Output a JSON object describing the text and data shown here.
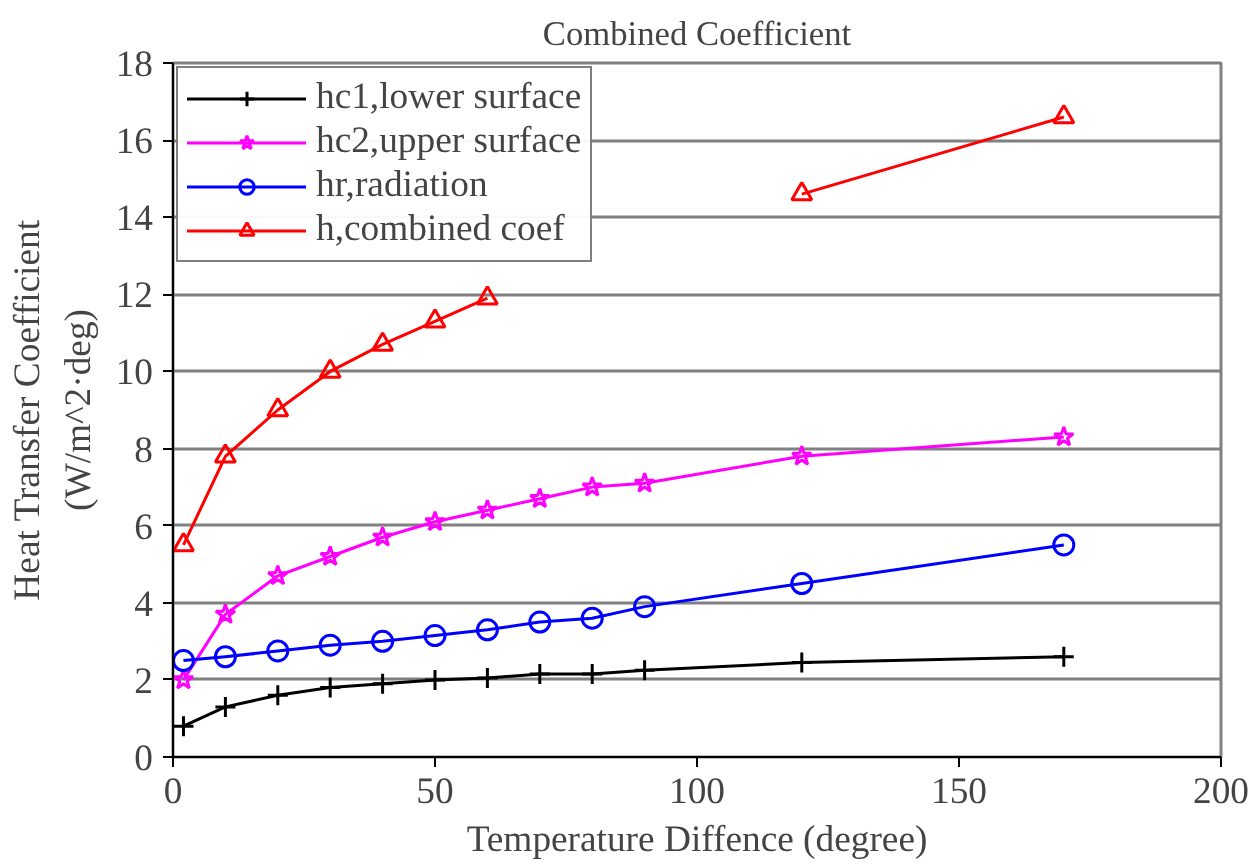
{
  "chart_data": {
    "type": "line",
    "title": "Combined Coefficient",
    "xlabel": "Temperature Diffence (degree)",
    "ylabel": "Heat Transfer Coefficient\n(W/m^2·deg)",
    "x": [
      2,
      10,
      20,
      30,
      40,
      50,
      60,
      70,
      80,
      90,
      120,
      170
    ],
    "series": [
      {
        "name": "hc1,lower surface",
        "color": "#000000",
        "marker": "cross",
        "values": [
          0.8,
          1.3,
          1.6,
          1.8,
          1.9,
          2.0,
          2.05,
          2.15,
          2.15,
          2.25,
          2.45,
          2.6
        ]
      },
      {
        "name": "hc2,upper surface",
        "color": "#ff00ff",
        "marker": "star",
        "values": [
          2.0,
          3.7,
          4.7,
          5.2,
          5.7,
          6.1,
          6.4,
          6.7,
          7.0,
          7.1,
          7.8,
          8.3
        ]
      },
      {
        "name": "hr,radiation",
        "color": "#0000ff",
        "marker": "circle",
        "values": [
          2.5,
          2.6,
          2.75,
          2.9,
          3.0,
          3.15,
          3.3,
          3.5,
          3.6,
          3.9,
          4.5,
          5.5
        ]
      },
      {
        "name": "h,combined coef",
        "color": "#ff0000",
        "marker": "triangle",
        "values": [
          5.5,
          7.8,
          9.0,
          10.0,
          10.7,
          11.3,
          11.9,
          null,
          null,
          null,
          14.6,
          16.6
        ]
      }
    ],
    "xlim": [
      0,
      200
    ],
    "xticks": [
      0,
      50,
      100,
      150,
      200
    ],
    "ylim": [
      0,
      18
    ],
    "yticks": [
      0,
      2,
      4,
      6,
      8,
      10,
      12,
      14,
      16,
      18
    ],
    "grid": "y",
    "legend": "top left",
    "line_style": "solid"
  }
}
